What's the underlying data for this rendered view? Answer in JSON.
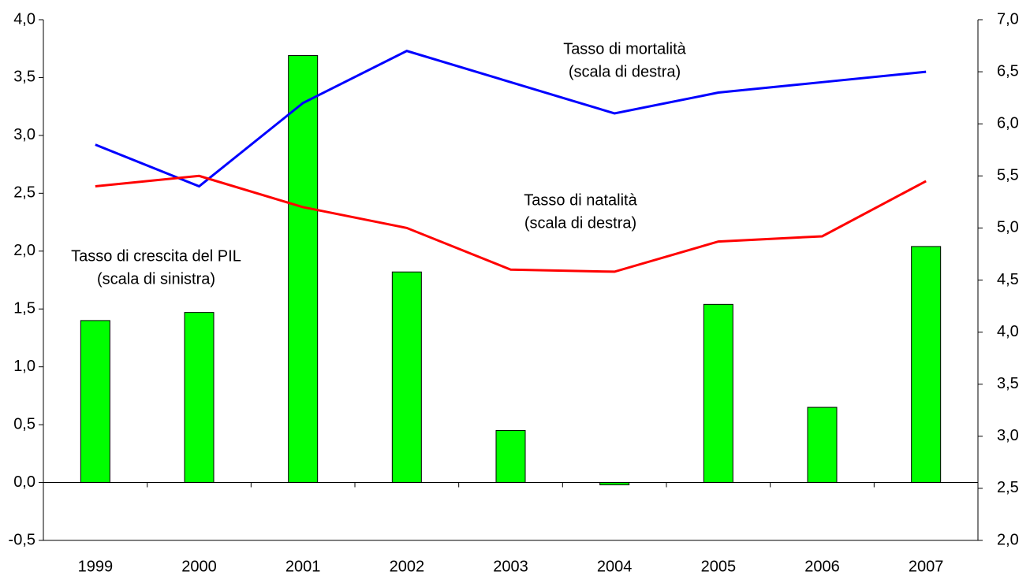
{
  "chart_data": {
    "type": "bar-line",
    "categories": [
      "1999",
      "2000",
      "2001",
      "2002",
      "2003",
      "2004",
      "2005",
      "2006",
      "2007"
    ],
    "series": [
      {
        "name": "Tasso di crescita del PIL",
        "note": "(scala di sinistra)",
        "type": "bar",
        "color": "#00ff00",
        "axis": "y",
        "values": [
          1.4,
          1.47,
          3.69,
          1.82,
          0.45,
          -0.02,
          1.54,
          0.65,
          2.04
        ]
      },
      {
        "name": "Tasso di mortalità",
        "note": "(scala di destra)",
        "type": "line",
        "color": "#0000ff",
        "axis": "y2",
        "values": [
          5.8,
          5.4,
          6.2,
          6.7,
          6.4,
          6.1,
          6.3,
          6.4,
          6.5
        ]
      },
      {
        "name": "Tasso di natalità",
        "note": "(scala di destra)",
        "type": "line",
        "color": "#ff0000",
        "axis": "y2",
        "values": [
          5.4,
          5.5,
          5.2,
          5.0,
          4.6,
          4.58,
          4.87,
          4.92,
          5.45
        ]
      }
    ],
    "ylim": [
      -0.5,
      4.0
    ],
    "yticks": [
      {
        "value": -0.5,
        "label": "-0,5"
      },
      {
        "value": 0,
        "label": "0,0"
      },
      {
        "value": 0.5,
        "label": "0,5"
      },
      {
        "value": 1.0,
        "label": "1,0"
      },
      {
        "value": 1.5,
        "label": "1,5"
      },
      {
        "value": 2.0,
        "label": "2,0"
      },
      {
        "value": 2.5,
        "label": "2,5"
      },
      {
        "value": 3.0,
        "label": "3,0"
      },
      {
        "value": 3.5,
        "label": "3,5"
      },
      {
        "value": 4.0,
        "label": "4,0"
      }
    ],
    "y2lim": [
      2.0,
      7.0
    ],
    "y2ticks": [
      {
        "value": 2.0,
        "label": "2,0"
      },
      {
        "value": 2.5,
        "label": "2,5"
      },
      {
        "value": 3.0,
        "label": "3,0"
      },
      {
        "value": 3.5,
        "label": "3,5"
      },
      {
        "value": 4.0,
        "label": "4,0"
      },
      {
        "value": 4.5,
        "label": "4,5"
      },
      {
        "value": 5.0,
        "label": "5,0"
      },
      {
        "value": 5.5,
        "label": "5,5"
      },
      {
        "value": 6.0,
        "label": "6,0"
      },
      {
        "value": 6.5,
        "label": "6,5"
      },
      {
        "value": 7.0,
        "label": "7,0"
      }
    ],
    "grid": false
  }
}
